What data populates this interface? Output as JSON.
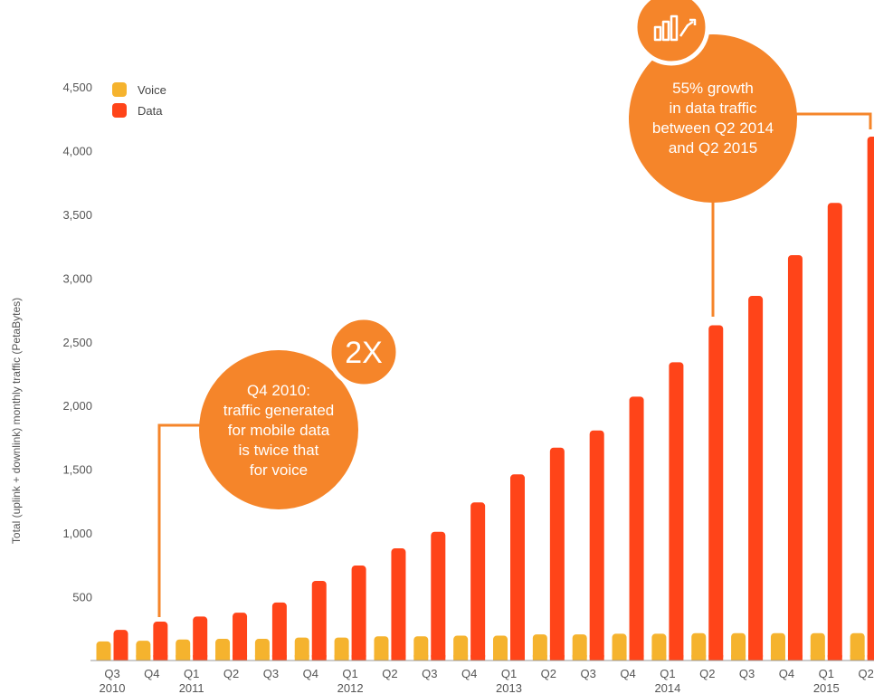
{
  "colors": {
    "voice": "#F5B32E",
    "data": "#FF4419",
    "callout": "#F5852A",
    "axis": "#9A9A9A"
  },
  "legend": {
    "voice_label": "Voice",
    "data_label": "Data"
  },
  "callouts": {
    "q4_2010": {
      "badge": "2X",
      "lines": [
        "Q4 2010:",
        "traffic generated",
        "for mobile data",
        "is twice that",
        "for voice"
      ]
    },
    "growth": {
      "icon": "bar-chart-growth-icon",
      "lines": [
        "55% growth",
        "in data traffic",
        "between Q2 2014",
        "and Q2 2015"
      ]
    }
  },
  "chart_data": {
    "type": "bar",
    "xlabel": "",
    "ylabel": "Total (uplink + downlink) monthly traffic (PetaBytes)",
    "ylim": [
      0,
      4500
    ],
    "yticks": [
      "500",
      "1,000",
      "1,500",
      "2,000",
      "2,500",
      "3,000",
      "3,500",
      "4,000",
      "4,500"
    ],
    "categories": [
      {
        "q": "Q3",
        "year": "2010"
      },
      {
        "q": "Q4",
        "year": ""
      },
      {
        "q": "Q1",
        "year": "2011"
      },
      {
        "q": "Q2",
        "year": ""
      },
      {
        "q": "Q3",
        "year": ""
      },
      {
        "q": "Q4",
        "year": ""
      },
      {
        "q": "Q1",
        "year": "2012"
      },
      {
        "q": "Q2",
        "year": ""
      },
      {
        "q": "Q3",
        "year": ""
      },
      {
        "q": "Q4",
        "year": ""
      },
      {
        "q": "Q1",
        "year": "2013"
      },
      {
        "q": "Q2",
        "year": ""
      },
      {
        "q": "Q3",
        "year": ""
      },
      {
        "q": "Q4",
        "year": ""
      },
      {
        "q": "Q1",
        "year": "2014"
      },
      {
        "q": "Q2",
        "year": ""
      },
      {
        "q": "Q3",
        "year": ""
      },
      {
        "q": "Q4",
        "year": ""
      },
      {
        "q": "Q1",
        "year": "2015"
      },
      {
        "q": "Q2",
        "year": ""
      }
    ],
    "series": [
      {
        "name": "Voice",
        "values": [
          150,
          155,
          165,
          170,
          170,
          180,
          180,
          190,
          190,
          195,
          195,
          205,
          205,
          210,
          210,
          215,
          215,
          215,
          215,
          215
        ]
      },
      {
        "name": "Data",
        "values": [
          240,
          305,
          345,
          375,
          455,
          625,
          745,
          880,
          1010,
          1240,
          1460,
          1670,
          1805,
          2070,
          2340,
          2630,
          2860,
          3180,
          3590,
          4110
        ]
      }
    ],
    "grid": false,
    "legend": "top-left"
  }
}
